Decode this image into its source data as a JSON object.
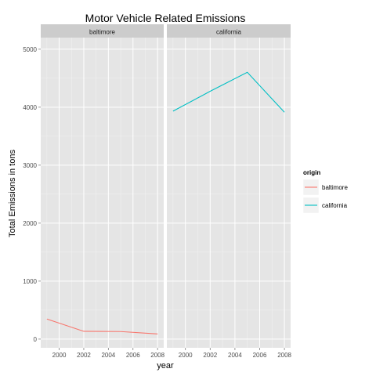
{
  "chart_data": {
    "type": "line",
    "title": "Motor Vehicle Related Emissions",
    "xlabel": "year",
    "ylabel": "Total Emissions in tons",
    "x": [
      1999,
      2002,
      2005,
      2008
    ],
    "xlim": [
      1998.5,
      2008.5
    ],
    "ylim": [
      -150,
      5200
    ],
    "xticks": [
      2000,
      2002,
      2004,
      2006,
      2008
    ],
    "yticks": [
      0,
      1000,
      2000,
      3000,
      4000,
      5000
    ],
    "facets": [
      "baltimore",
      "california"
    ],
    "legend": {
      "title": "origin",
      "placement": "right",
      "entries": [
        "baltimore",
        "california"
      ]
    },
    "series": [
      {
        "name": "baltimore",
        "facet": "baltimore",
        "color": "#F8766D",
        "values": [
          346.8,
          134.3,
          130.4,
          88.3
        ]
      },
      {
        "name": "california",
        "facet": "california",
        "color": "#00BFC4",
        "values": [
          3931.1,
          4274.0,
          4601.4,
          3912.4
        ]
      }
    ],
    "grid": true
  }
}
